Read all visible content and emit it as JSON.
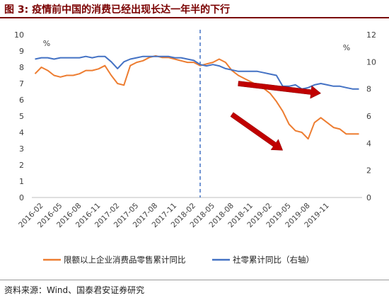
{
  "title": "图 3: 疫情前中国的消费已经出现长达一年半的下行",
  "source": "资料来源：Wind、国泰君安证券研究",
  "chart_data": {
    "type": "line",
    "left_unit": "%",
    "right_unit": "%",
    "left_ylim": [
      0,
      10
    ],
    "right_ylim": [
      0,
      12
    ],
    "left_ticks": [
      "0",
      "1",
      "2",
      "3",
      "4",
      "5",
      "6",
      "7",
      "8",
      "9",
      "10"
    ],
    "right_ticks": [
      "0",
      "2",
      "4",
      "6",
      "8",
      "10",
      "12"
    ],
    "x_ticks": [
      "2016-02",
      "2016-05",
      "2016-08",
      "2016-11",
      "2017-02",
      "2017-05",
      "2017-08",
      "2017-11",
      "2018-02",
      "2018-05",
      "2018-08",
      "2018-11",
      "2019-02",
      "2019-05",
      "2019-08",
      "2019-11"
    ],
    "grid": false,
    "legend_position": "bottom",
    "vline_at": "2018-03",
    "series": [
      {
        "name": "限额以上企业消费品零售累计同比",
        "axis": "left",
        "color": "#ED7D31",
        "values": [
          7.6,
          8.0,
          7.8,
          7.5,
          7.4,
          7.5,
          7.5,
          7.6,
          7.8,
          7.8,
          7.9,
          8.1,
          7.5,
          7.0,
          6.9,
          8.1,
          8.3,
          8.4,
          8.6,
          8.7,
          8.6,
          8.6,
          8.5,
          8.4,
          8.3,
          8.3,
          8.1,
          8.2,
          8.3,
          8.5,
          8.3,
          7.8,
          7.5,
          7.3,
          7.1,
          6.9,
          6.7,
          6.4,
          5.9,
          5.3,
          4.5,
          4.1,
          4.0,
          3.6,
          4.6,
          4.9,
          4.6,
          4.3,
          4.2,
          3.9,
          3.9,
          3.9
        ]
      },
      {
        "name": "社零累计同比（右轴）",
        "axis": "right",
        "color": "#4472C4",
        "values": [
          10.2,
          10.3,
          10.3,
          10.2,
          10.3,
          10.3,
          10.3,
          10.3,
          10.4,
          10.3,
          10.4,
          10.4,
          10.0,
          9.5,
          10.0,
          10.2,
          10.3,
          10.4,
          10.4,
          10.4,
          10.4,
          10.4,
          10.3,
          10.3,
          10.2,
          10.1,
          9.8,
          9.7,
          9.8,
          9.7,
          9.5,
          9.4,
          9.3,
          9.3,
          9.3,
          9.3,
          9.2,
          9.1,
          9.0,
          8.2,
          8.2,
          8.3,
          8.0,
          8.1,
          8.3,
          8.4,
          8.3,
          8.2,
          8.2,
          8.1,
          8.0,
          8.0
        ]
      }
    ],
    "annotations": [
      {
        "type": "arrow",
        "color": "#C00000",
        "from": [
          "2018-09",
          7.0
        ],
        "to": [
          "2019-10",
          6.4
        ]
      },
      {
        "type": "arrow",
        "color": "#C00000",
        "from": [
          "2018-08",
          5.1
        ],
        "to": [
          "2019-04",
          2.9
        ]
      }
    ]
  }
}
